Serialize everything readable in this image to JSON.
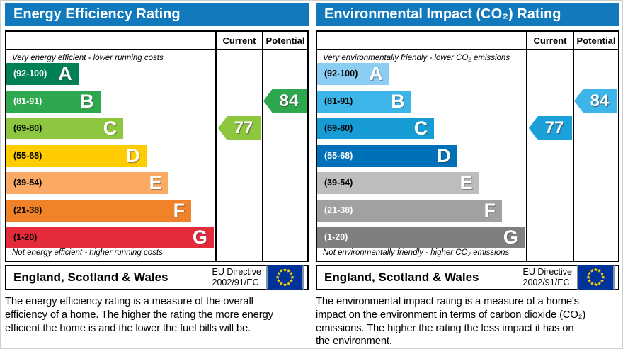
{
  "header": {
    "bg": "#1279bd",
    "text_color": "#ffffff"
  },
  "eu_flag": {
    "bg": "#003399",
    "star_color": "#ffcc00"
  },
  "panels": [
    {
      "title": "Energy Efficiency Rating",
      "columns": {
        "current": "Current",
        "potential": "Potential"
      },
      "top_caption": "Very energy efficient - lower running costs",
      "bottom_caption": "Not energy efficient - higher running costs",
      "bands": [
        {
          "range": "(92-100)",
          "letter": "A",
          "width_pct": 34.5,
          "color": "#008054",
          "label_color": "#ffffff"
        },
        {
          "range": "(81-91)",
          "letter": "B",
          "width_pct": 45.0,
          "color": "#2ea84f",
          "label_color": "#ffffff"
        },
        {
          "range": "(69-80)",
          "letter": "C",
          "width_pct": 56.0,
          "color": "#8dc63f",
          "label_color": "#000000"
        },
        {
          "range": "(55-68)",
          "letter": "D",
          "width_pct": 67.0,
          "color": "#ffcc00",
          "label_color": "#000000"
        },
        {
          "range": "(39-54)",
          "letter": "E",
          "width_pct": 77.5,
          "color": "#fbaa65",
          "label_color": "#000000"
        },
        {
          "range": "(21-38)",
          "letter": "F",
          "width_pct": 88.5,
          "color": "#f0832a",
          "label_color": "#000000"
        },
        {
          "range": "(1-20)",
          "letter": "G",
          "width_pct": 99.3,
          "color": "#e42b3c",
          "label_color": "#000000"
        }
      ],
      "current": {
        "value": "77",
        "band_index": 2,
        "color": "#8dc63f"
      },
      "potential": {
        "value": "84",
        "band_index": 1,
        "color": "#2ea84f"
      },
      "footer": {
        "region": "England, Scotland & Wales",
        "directive_line1": "EU Directive",
        "directive_line2": "2002/91/EC"
      },
      "description": "The energy efficiency rating is a measure of the overall efficiency of a home. The higher the rating the more energy efficient the home is and the lower the fuel bills will be."
    },
    {
      "title": "Environmental Impact (CO₂) Rating",
      "columns": {
        "current": "Current",
        "potential": "Potential"
      },
      "top_caption": "Very environmentally friendly - lower CO₂ emissions",
      "bottom_caption": "Not environmentally friendly - higher CO₂ emissions",
      "bands": [
        {
          "range": "(92-100)",
          "letter": "A",
          "width_pct": 34.5,
          "color": "#8ccef3",
          "label_color": "#000000"
        },
        {
          "range": "(81-91)",
          "letter": "B",
          "width_pct": 45.0,
          "color": "#3db5e9",
          "label_color": "#000000"
        },
        {
          "range": "(69-80)",
          "letter": "C",
          "width_pct": 56.0,
          "color": "#169bd5",
          "label_color": "#000000"
        },
        {
          "range": "(55-68)",
          "letter": "D",
          "width_pct": 67.0,
          "color": "#0071b9",
          "label_color": "#ffffff"
        },
        {
          "range": "(39-54)",
          "letter": "E",
          "width_pct": 77.5,
          "color": "#bdbdbd",
          "label_color": "#000000"
        },
        {
          "range": "(21-38)",
          "letter": "F",
          "width_pct": 88.5,
          "color": "#a1a1a1",
          "label_color": "#ffffff"
        },
        {
          "range": "(1-20)",
          "letter": "G",
          "width_pct": 99.3,
          "color": "#7f7f7f",
          "label_color": "#ffffff"
        }
      ],
      "current": {
        "value": "77",
        "band_index": 2,
        "color": "#1ba0da"
      },
      "potential": {
        "value": "84",
        "band_index": 1,
        "color": "#3db5e9"
      },
      "footer": {
        "region": "England, Scotland & Wales",
        "directive_line1": "EU Directive",
        "directive_line2": "2002/91/EC"
      },
      "description": "The environmental impact rating is a measure of a home's impact on the environment in terms of carbon dioxide (CO₂) emissions. The higher the rating the less impact it has on the environment."
    }
  ],
  "chart_data": [
    {
      "type": "bar",
      "title": "Energy Efficiency Rating",
      "categories": [
        "A (92-100)",
        "B (81-91)",
        "C (69-80)",
        "D (55-68)",
        "E (39-54)",
        "F (21-38)",
        "G (1-20)"
      ],
      "series": [
        {
          "name": "Current",
          "value": 77,
          "band": "C"
        },
        {
          "name": "Potential",
          "value": 84,
          "band": "B"
        }
      ],
      "annotations": [
        "Very energy efficient - lower running costs",
        "Not energy efficient - higher running costs"
      ],
      "region": "England, Scotland & Wales",
      "directive": "EU Directive 2002/91/EC"
    },
    {
      "type": "bar",
      "title": "Environmental Impact (CO₂) Rating",
      "categories": [
        "A (92-100)",
        "B (81-91)",
        "C (69-80)",
        "D (55-68)",
        "E (39-54)",
        "F (21-38)",
        "G (1-20)"
      ],
      "series": [
        {
          "name": "Current",
          "value": 77,
          "band": "C"
        },
        {
          "name": "Potential",
          "value": 84,
          "band": "B"
        }
      ],
      "annotations": [
        "Very environmentally friendly - lower CO₂ emissions",
        "Not environmentally friendly - higher CO₂ emissions"
      ],
      "region": "England, Scotland & Wales",
      "directive": "EU Directive 2002/91/EC"
    }
  ]
}
